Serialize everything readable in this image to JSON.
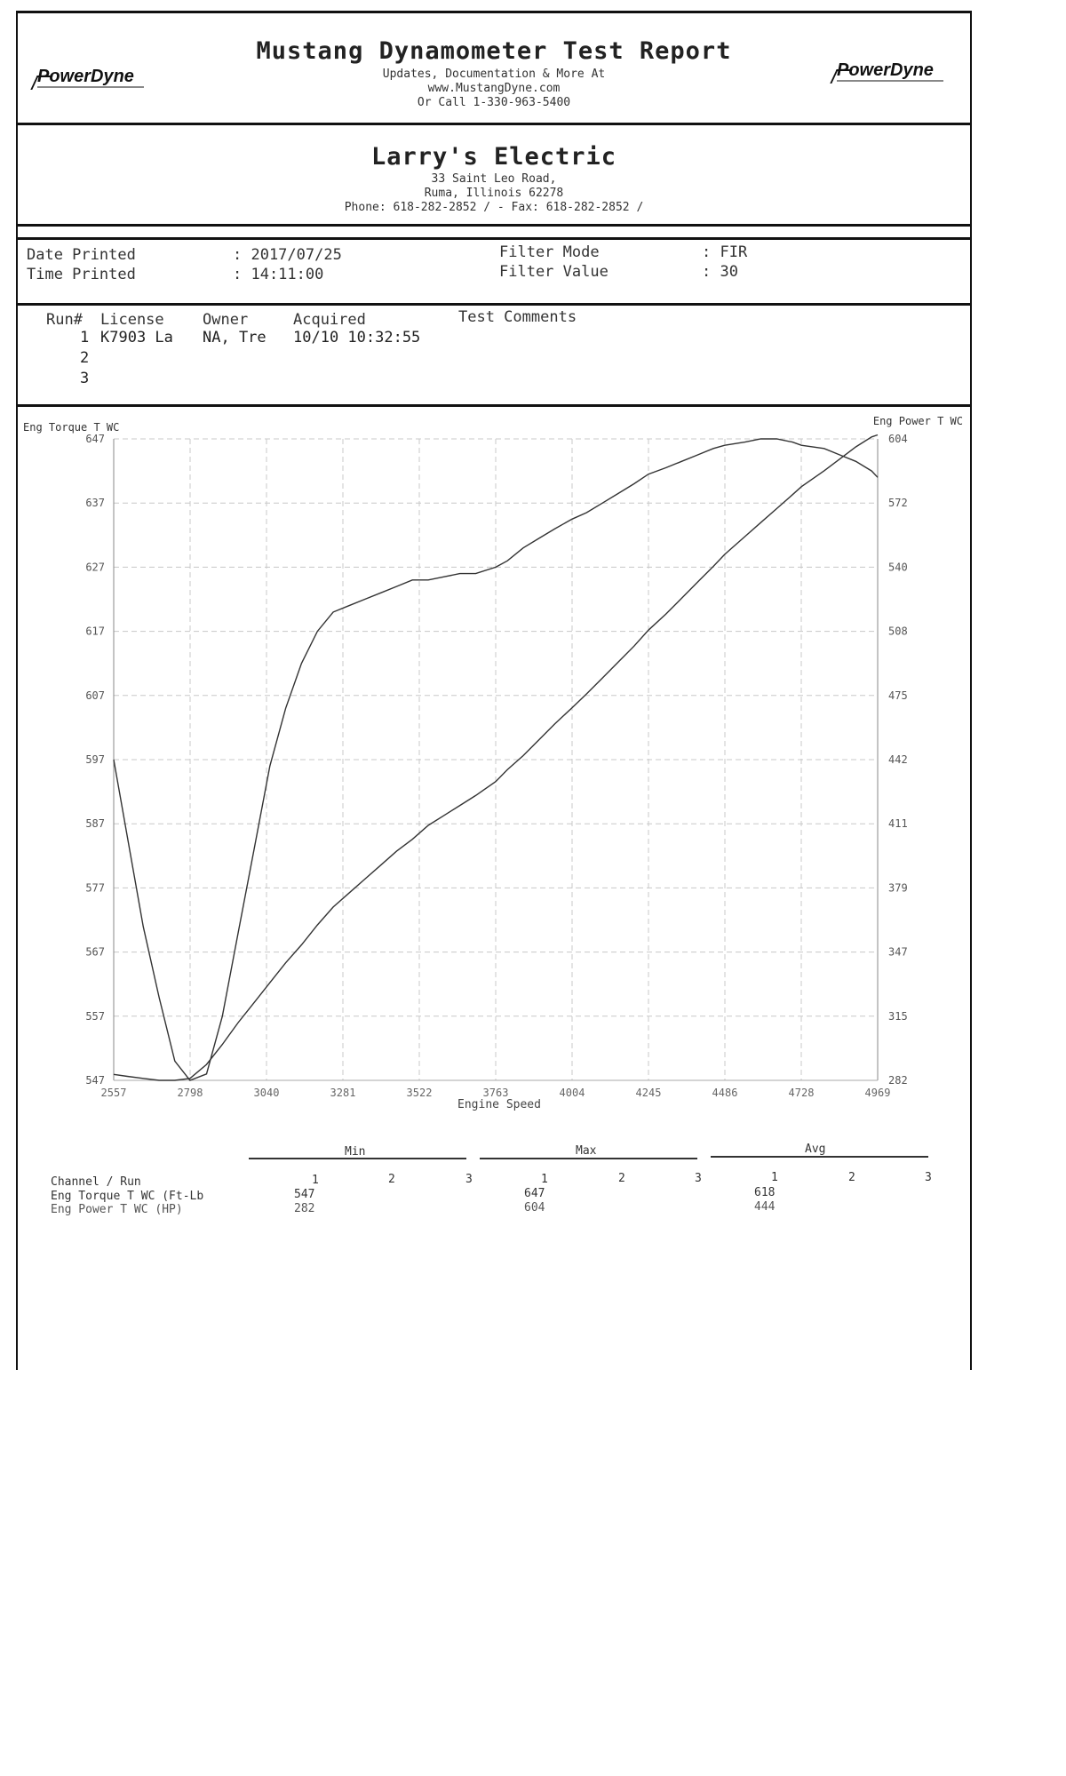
{
  "header": {
    "logo_left": "PowerDyne",
    "logo_right": "PowerDyne",
    "title": "Mustang Dynamometer Test Report",
    "line1": "Updates, Documentation & More At",
    "line2": "www.MustangDyne.com",
    "line3": "Or Call 1-330-963-5400"
  },
  "shop": {
    "name": "Larry's Electric",
    "address1": "33 Saint Leo Road,",
    "address2": "Ruma, Illinois  62278",
    "phone": "Phone: 618-282-2852 /  - Fax: 618-282-2852 /"
  },
  "print_info": {
    "date_label": "Date Printed",
    "date_value": ": 2017/07/25",
    "time_label": "Time Printed",
    "time_value": ": 14:11:00",
    "filter_mode_label": "Filter Mode",
    "filter_mode_value": ": FIR",
    "filter_value_label": "Filter Value",
    "filter_value_value": ": 30"
  },
  "runs": {
    "headers": [
      "Run#",
      "License",
      "Owner",
      "Acquired",
      "Test Comments"
    ],
    "rows": [
      {
        "run": "1",
        "license": "K7903 La",
        "owner": "NA, Tre",
        "acquired": "10/10 10:32:55"
      },
      {
        "run": "2"
      },
      {
        "run": "3"
      }
    ]
  },
  "chart_data": {
    "type": "line",
    "title": "",
    "xlabel": "Engine Speed",
    "ylabel_left": "Eng Torque T WC",
    "ylabel_right": "Eng Power T WC",
    "x_ticks": [
      "2557",
      "2798",
      "3040",
      "3281",
      "3522",
      "3763",
      "4004",
      "4245",
      "4486",
      "4728",
      "4969"
    ],
    "y_left_ticks": [
      "647",
      "637",
      "627",
      "617",
      "607",
      "597",
      "587",
      "577",
      "567",
      "557",
      "547"
    ],
    "y_right_ticks": [
      "604",
      "572",
      "540",
      "508",
      "475",
      "442",
      "411",
      "379",
      "347",
      "315",
      "282"
    ],
    "xlim": [
      2557,
      4969
    ],
    "ylim_left": [
      547,
      647
    ],
    "ylim_right": [
      282,
      604
    ],
    "grid": true,
    "series": [
      {
        "name": "Eng Torque T WC",
        "axis": "left",
        "x": [
          2557,
          2600,
          2650,
          2700,
          2750,
          2798,
          2850,
          2900,
          2950,
          3000,
          3050,
          3100,
          3150,
          3200,
          3250,
          3300,
          3350,
          3400,
          3450,
          3500,
          3550,
          3600,
          3650,
          3700,
          3763,
          3800,
          3850,
          3900,
          3950,
          4004,
          4050,
          4100,
          4150,
          4200,
          4245,
          4300,
          4350,
          4400,
          4450,
          4486,
          4550,
          4600,
          4650,
          4700,
          4728,
          4800,
          4850,
          4900,
          4950,
          4969
        ],
        "y": [
          597,
          585,
          571,
          560,
          550,
          547,
          548,
          557,
          570,
          583,
          596,
          605,
          612,
          617,
          620,
          621,
          622,
          623,
          624,
          625,
          625,
          625.5,
          626,
          626,
          627,
          628,
          630,
          631.5,
          633,
          634.5,
          635.5,
          637,
          638.5,
          640,
          641.5,
          642.5,
          643.5,
          644.5,
          645.5,
          646,
          646.5,
          647,
          647,
          646.5,
          646,
          645.5,
          644.5,
          643.5,
          642,
          641
        ]
      },
      {
        "name": "Eng Power T WC",
        "axis": "right",
        "x": [
          2557,
          2600,
          2650,
          2700,
          2750,
          2798,
          2850,
          2900,
          2950,
          3000,
          3050,
          3100,
          3150,
          3200,
          3250,
          3300,
          3350,
          3400,
          3450,
          3500,
          3550,
          3600,
          3650,
          3700,
          3763,
          3800,
          3850,
          3900,
          3950,
          4004,
          4050,
          4100,
          4150,
          4200,
          4245,
          4300,
          4350,
          4400,
          4450,
          4486,
          4550,
          4600,
          4650,
          4700,
          4728,
          4800,
          4850,
          4900,
          4950,
          4969
        ],
        "y": [
          285,
          284,
          283,
          282,
          282,
          283,
          290,
          300,
          311,
          321,
          331,
          341,
          350,
          360,
          369,
          376,
          383,
          390,
          397,
          403,
          410,
          415,
          420,
          425,
          432,
          438,
          445,
          453,
          461,
          469,
          476,
          484,
          492,
          500,
          508,
          516,
          524,
          532,
          540,
          546,
          555,
          562,
          569,
          576,
          580,
          588,
          594,
          600,
          605,
          606
        ]
      }
    ]
  },
  "stats": {
    "groups": [
      "Min",
      "Max",
      "Avg"
    ],
    "channel_header": "Channel / Run",
    "run_numbers": [
      "1",
      "2",
      "3"
    ],
    "rows": [
      {
        "label": "Eng Torque T WC (Ft-Lb",
        "min": "547",
        "max": "647",
        "avg": "618"
      },
      {
        "label": "Eng Power T WC (HP)",
        "min": "282",
        "max": "604",
        "avg": "444"
      }
    ]
  }
}
